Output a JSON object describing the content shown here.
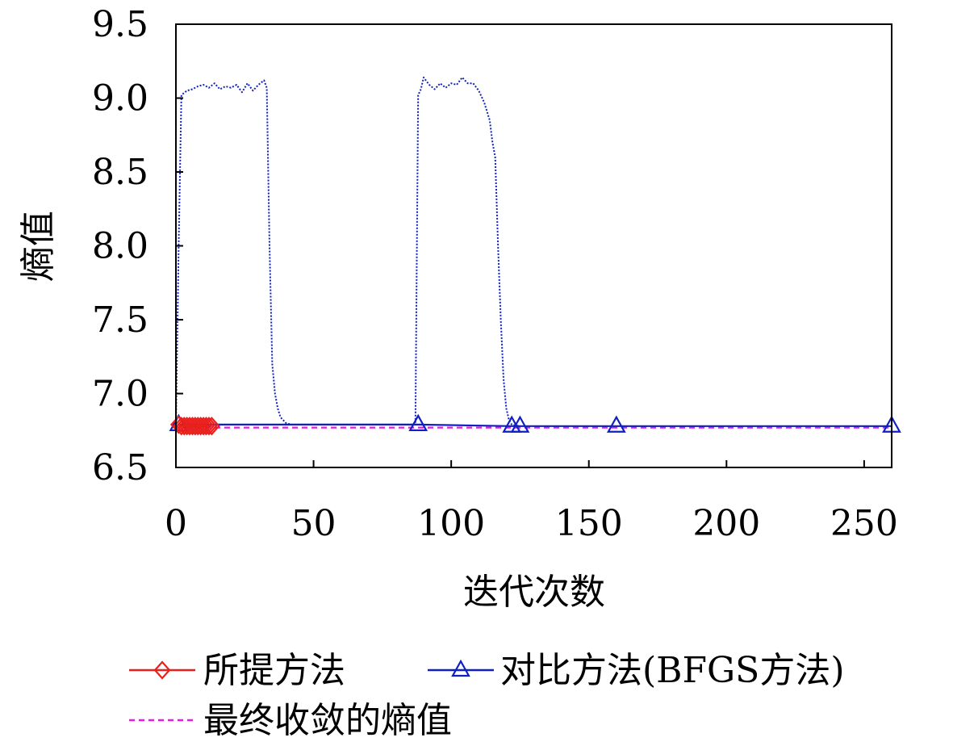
{
  "chart_data": {
    "type": "line",
    "xlabel": "迭代次数",
    "ylabel": "熵值",
    "xlim": [
      0,
      260
    ],
    "ylim": [
      6.5,
      9.5
    ],
    "xticks": [
      0,
      50,
      100,
      150,
      200,
      250
    ],
    "yticks": [
      6.5,
      7.0,
      7.5,
      8.0,
      8.5,
      9.0,
      9.5
    ],
    "xtick_labels": [
      "0",
      "50",
      "100",
      "150",
      "200",
      "250"
    ],
    "ytick_labels": [
      "6.5",
      "7.0",
      "7.5",
      "8.0",
      "8.5",
      "9.0",
      "9.5"
    ],
    "grid": false,
    "legend_position": "bottom",
    "series": [
      {
        "name": "所提方法",
        "color": "#e8201e",
        "style": "solid",
        "marker": "diamond",
        "x": [
          1,
          2,
          3,
          4,
          5,
          6,
          7,
          8,
          9,
          10,
          11,
          12,
          13
        ],
        "y": [
          6.79,
          6.78,
          6.78,
          6.78,
          6.78,
          6.78,
          6.78,
          6.78,
          6.78,
          6.78,
          6.78,
          6.78,
          6.78
        ]
      },
      {
        "name": "对比方法(BFGS方法)",
        "color": "#1020c0",
        "style": "solid",
        "marker": "triangle",
        "x": [
          1,
          88,
          122,
          125,
          160,
          260
        ],
        "y": [
          6.79,
          6.79,
          6.78,
          6.78,
          6.78,
          6.78
        ]
      },
      {
        "name": "",
        "color": "#1020c0",
        "style": "dotted",
        "marker": "none",
        "x": [
          0,
          1,
          2,
          4,
          6,
          8,
          10,
          12,
          14,
          16,
          18,
          20,
          22,
          24,
          26,
          28,
          30,
          32,
          33,
          34,
          35,
          36,
          37,
          38,
          40,
          42,
          44,
          60,
          80,
          87,
          88,
          89,
          90,
          92,
          94,
          96,
          98,
          100,
          102,
          104,
          106,
          108,
          110,
          112,
          114,
          115,
          116,
          117,
          118,
          119,
          120,
          121,
          122,
          125
        ],
        "y": [
          6.78,
          8.0,
          9.02,
          9.05,
          9.06,
          9.08,
          9.09,
          9.07,
          9.1,
          9.06,
          9.08,
          9.07,
          9.09,
          9.04,
          9.1,
          9.05,
          9.09,
          9.12,
          9.07,
          8.0,
          7.2,
          7.0,
          6.9,
          6.84,
          6.8,
          6.79,
          6.79,
          6.79,
          6.79,
          6.79,
          9.02,
          9.06,
          9.14,
          9.09,
          9.06,
          9.1,
          9.07,
          9.1,
          9.09,
          9.14,
          9.1,
          9.1,
          9.05,
          8.97,
          8.85,
          8.7,
          8.6,
          8.0,
          7.5,
          7.1,
          6.9,
          6.82,
          6.79,
          6.78
        ]
      },
      {
        "name": "最终收敛的熵值",
        "color": "#e020e0",
        "style": "dashed",
        "marker": "none",
        "x": [
          0,
          260
        ],
        "y": [
          6.77,
          6.77
        ]
      }
    ]
  },
  "legend": {
    "items": [
      {
        "label": "所提方法",
        "color": "#e8201e",
        "style": "solid",
        "marker": "diamond"
      },
      {
        "label": "对比方法(BFGS方法)",
        "color": "#1020c0",
        "style": "solid",
        "marker": "triangle"
      },
      {
        "label": "最终收敛的熵值",
        "color": "#e020e0",
        "style": "dashed",
        "marker": "none"
      }
    ]
  }
}
